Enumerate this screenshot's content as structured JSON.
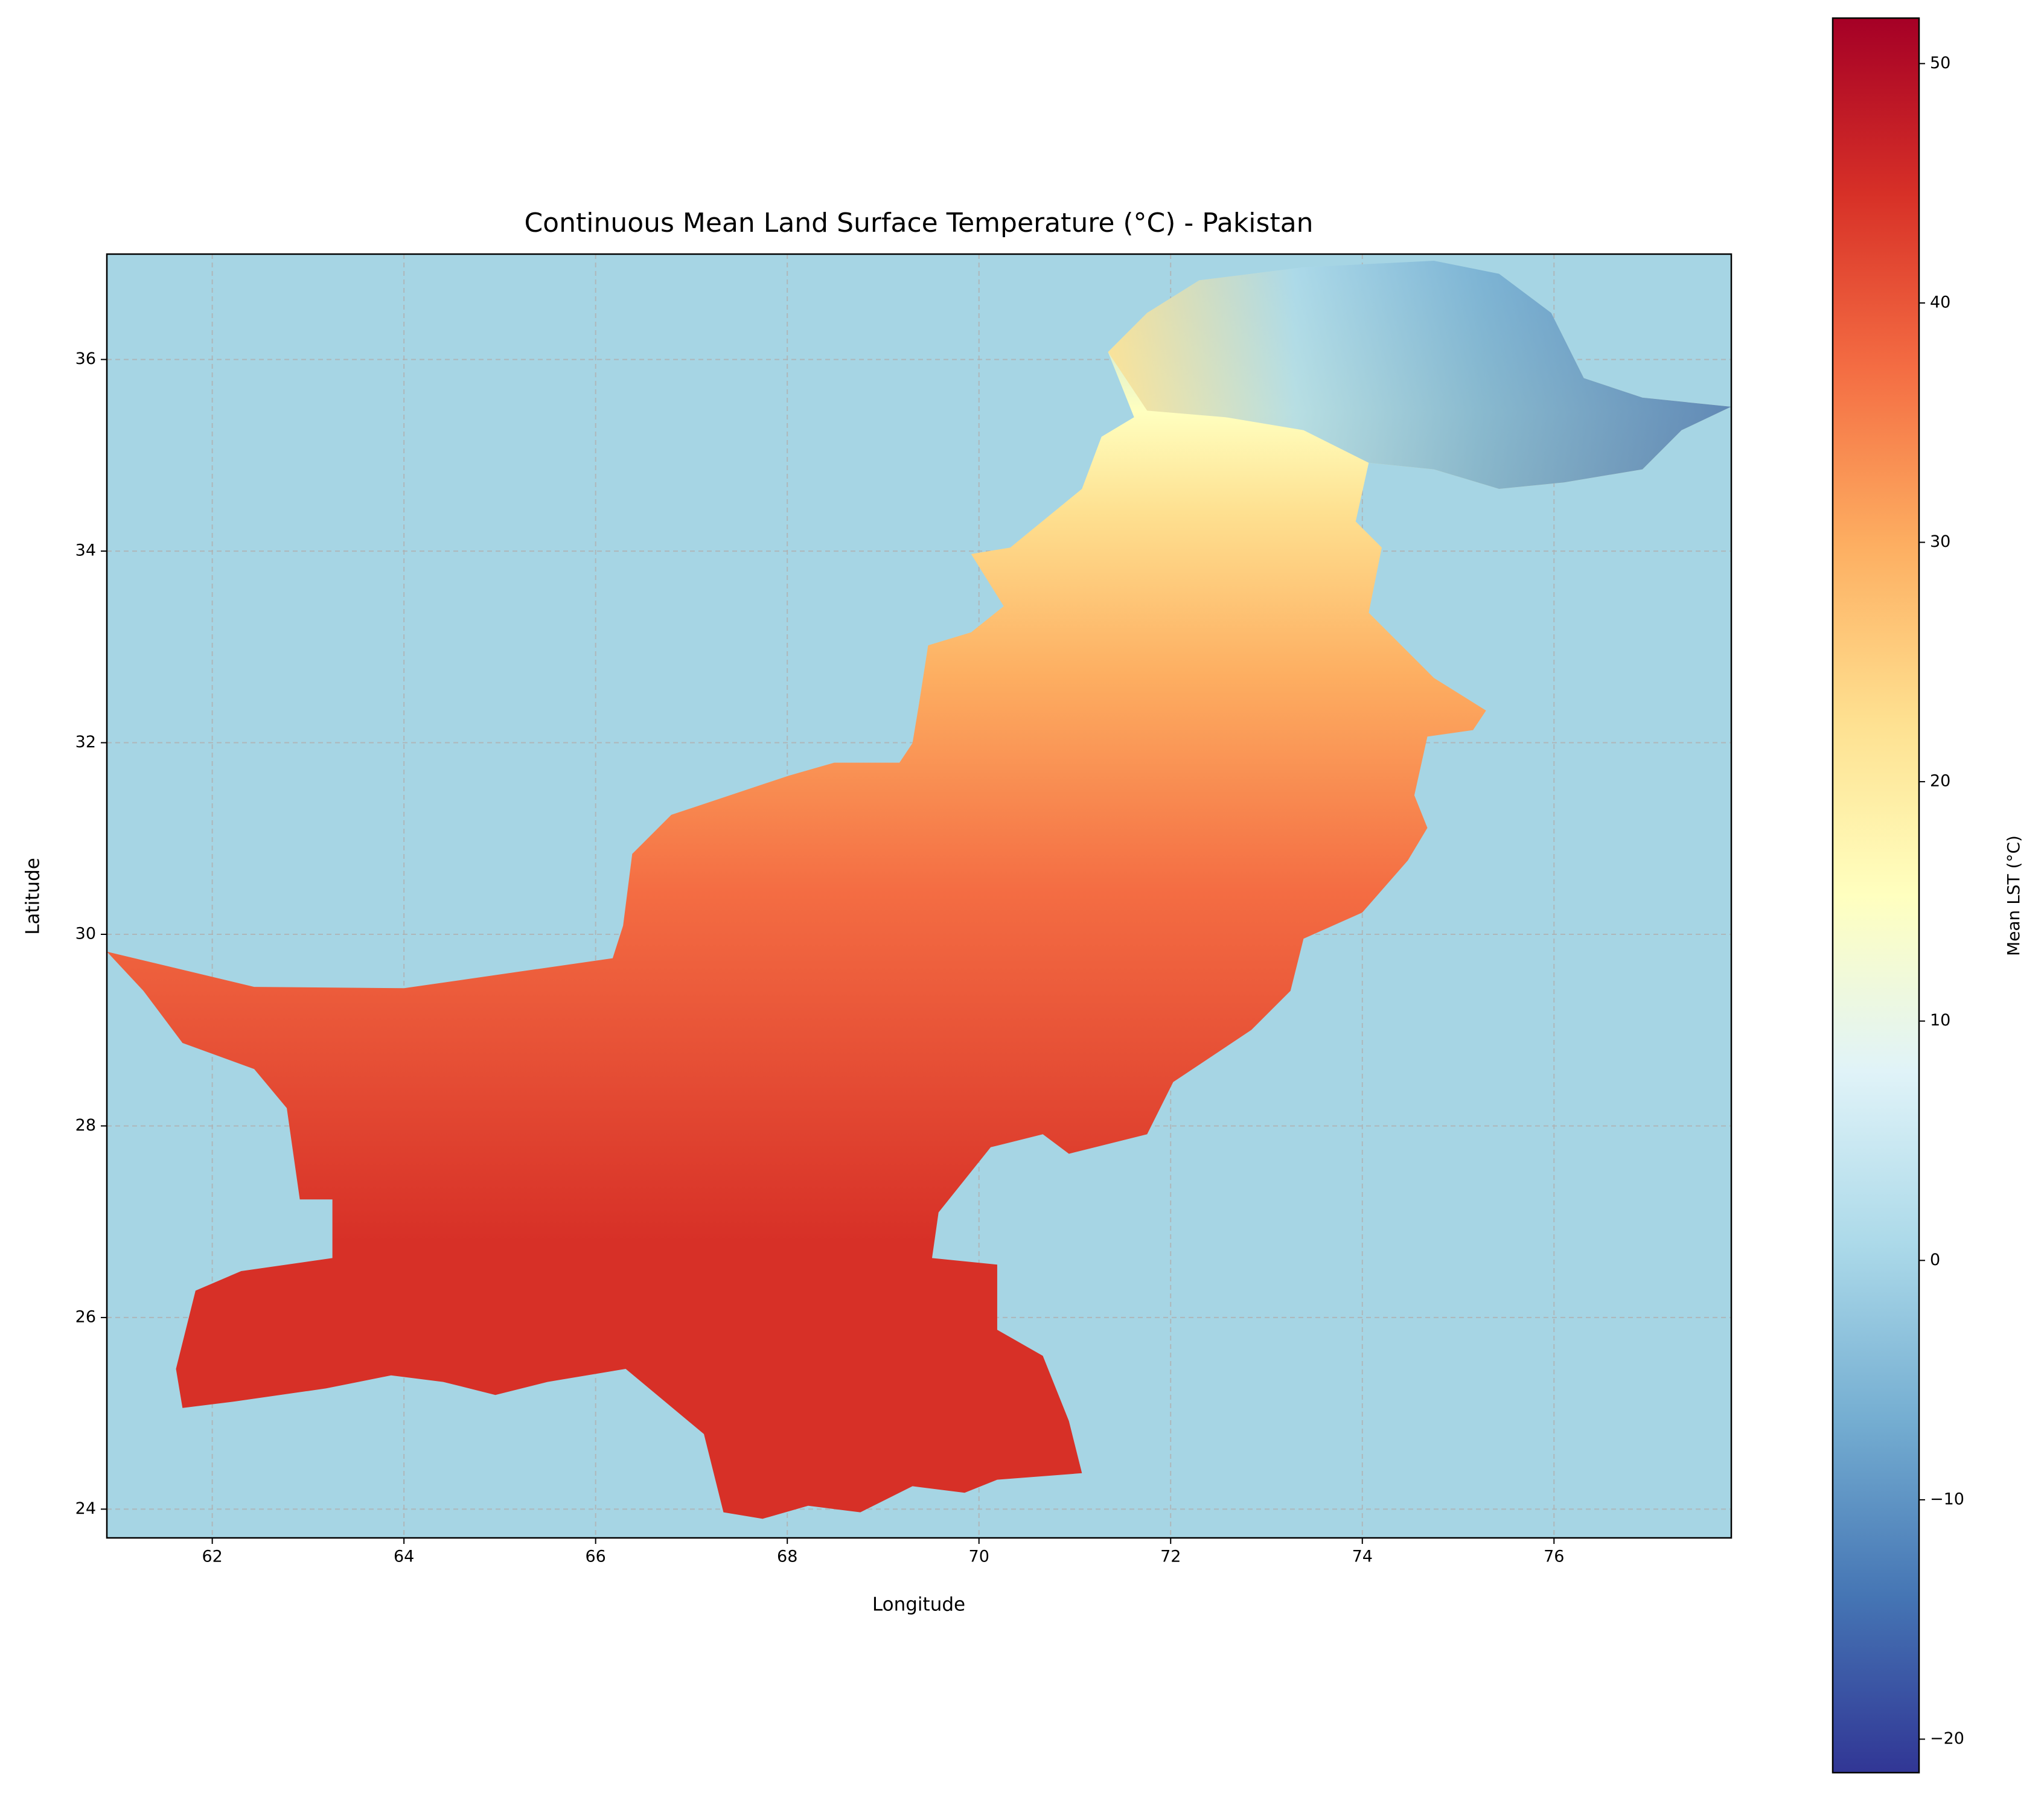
{
  "chart_data": {
    "type": "map",
    "title": "Continuous Mean Land Surface Temperature (°C) - Pakistan",
    "x_label": "Longitude",
    "y_label": "Latitude",
    "xlim": [
      60.9,
      77.85
    ],
    "ylim": [
      23.7,
      37.1
    ],
    "xticks": [
      62,
      64,
      66,
      68,
      70,
      72,
      74,
      76
    ],
    "yticks": [
      24,
      26,
      28,
      30,
      32,
      34,
      36
    ],
    "grid": true,
    "background_color": "#a6d5e4",
    "colorbar": {
      "label": "Mean LST (°C)",
      "lim": [
        -21.4,
        51.9
      ],
      "ticks": [
        {
          "value": -20,
          "label": "−20"
        },
        {
          "value": -10,
          "label": "−10"
        },
        0,
        10,
        20,
        30,
        40,
        50
      ],
      "colormap": [
        "#313695",
        "#4575b4",
        "#74add1",
        "#abd9e9",
        "#e0f3f8",
        "#ffffbf",
        "#fee090",
        "#fdae61",
        "#f46d43",
        "#d73027",
        "#a50026"
      ]
    }
  }
}
